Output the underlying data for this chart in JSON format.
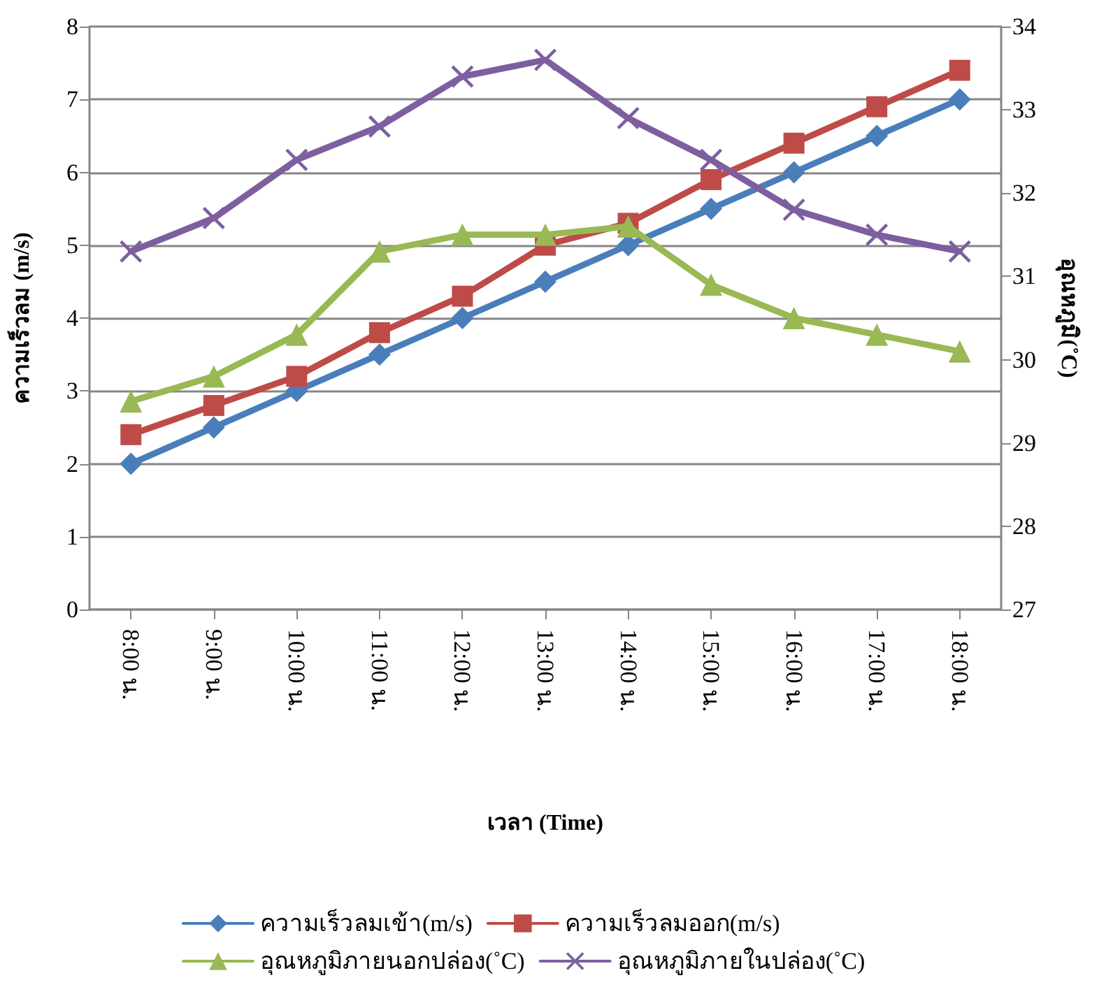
{
  "chart_data": {
    "type": "line",
    "xlabel": "เวลา (Time)",
    "ylabel": "ความเร็วลม (m/s)",
    "y2label": "อุณหภูมิ(˚C)",
    "categories": [
      "8:00 น.",
      "9:00 น.",
      "10:00 น.",
      "11:00 น.",
      "12:00 น.",
      "13:00 น.",
      "14:00 น.",
      "15:00 น.",
      "16:00 น.",
      "17:00 น.",
      "18:00 น."
    ],
    "series": [
      {
        "name": "ความเร็วลมเข้า(m/s)",
        "color": "#4a7ebb",
        "marker": "diamond",
        "values": [
          2,
          2.5,
          3,
          3.5,
          4,
          4.5,
          5,
          5.5,
          6,
          6.5,
          7
        ]
      },
      {
        "name": "ความเร็วลมออก(m/s)",
        "color": "#be4b48",
        "marker": "square",
        "values": [
          2.4,
          2.8,
          3.2,
          3.8,
          4.3,
          5.0,
          5.3,
          5.9,
          6.4,
          6.9,
          7.4
        ]
      },
      {
        "name": "อุณหภูมิภายนอกปล่อง(˚C)",
        "color": "#98b954",
        "marker": "triangle",
        "axis": "y2",
        "values": [
          29.5,
          29.8,
          30.3,
          31.3,
          31.5,
          31.5,
          31.6,
          30.9,
          30.5,
          30.3,
          30.1
        ]
      },
      {
        "name": "อุณหภูมิภายในปล่อง(˚C)",
        "color": "#7d5fa0",
        "marker": "cross",
        "axis": "y2",
        "values": [
          31.3,
          31.7,
          32.4,
          32.8,
          33.4,
          33.6,
          32.9,
          32.4,
          31.8,
          31.5,
          31.3
        ]
      }
    ],
    "ylim": [
      0,
      8
    ],
    "yticks": [
      0,
      1,
      2,
      3,
      4,
      5,
      6,
      7,
      8
    ],
    "y2lim": [
      27,
      34
    ],
    "y2ticks": [
      27,
      28,
      29,
      30,
      31,
      32,
      33,
      34
    ],
    "grid": "y",
    "legend": "bottom",
    "line_style": "solid"
  }
}
